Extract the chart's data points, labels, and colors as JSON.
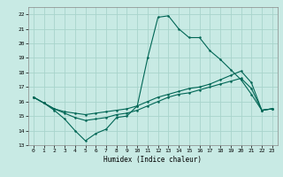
{
  "title": "",
  "xlabel": "Humidex (Indice chaleur)",
  "xlim": [
    -0.5,
    23.5
  ],
  "ylim": [
    13,
    22.5
  ],
  "xticks": [
    0,
    1,
    2,
    3,
    4,
    5,
    6,
    7,
    8,
    9,
    10,
    11,
    12,
    13,
    14,
    15,
    16,
    17,
    18,
    19,
    20,
    21,
    22,
    23
  ],
  "yticks": [
    13,
    14,
    15,
    16,
    17,
    18,
    19,
    20,
    21,
    22
  ],
  "bg_color": "#c8eae4",
  "grid_color": "#a8d4cc",
  "line_color": "#006655",
  "line1_y": [
    16.3,
    15.9,
    15.4,
    14.8,
    14.0,
    13.3,
    13.8,
    14.1,
    14.9,
    15.0,
    15.7,
    19.0,
    21.8,
    21.9,
    21.0,
    20.4,
    20.4,
    19.5,
    18.9,
    18.2,
    17.5,
    16.5,
    15.4,
    15.5
  ],
  "line2_y": [
    16.3,
    15.9,
    15.5,
    15.3,
    15.2,
    15.1,
    15.2,
    15.3,
    15.4,
    15.5,
    15.7,
    16.0,
    16.3,
    16.5,
    16.7,
    16.9,
    17.0,
    17.2,
    17.5,
    17.8,
    18.1,
    17.3,
    15.4,
    15.5
  ],
  "line3_y": [
    16.3,
    15.9,
    15.5,
    15.2,
    14.9,
    14.7,
    14.8,
    14.9,
    15.1,
    15.2,
    15.4,
    15.7,
    16.0,
    16.3,
    16.5,
    16.6,
    16.8,
    17.0,
    17.2,
    17.4,
    17.6,
    16.9,
    15.4,
    15.5
  ]
}
